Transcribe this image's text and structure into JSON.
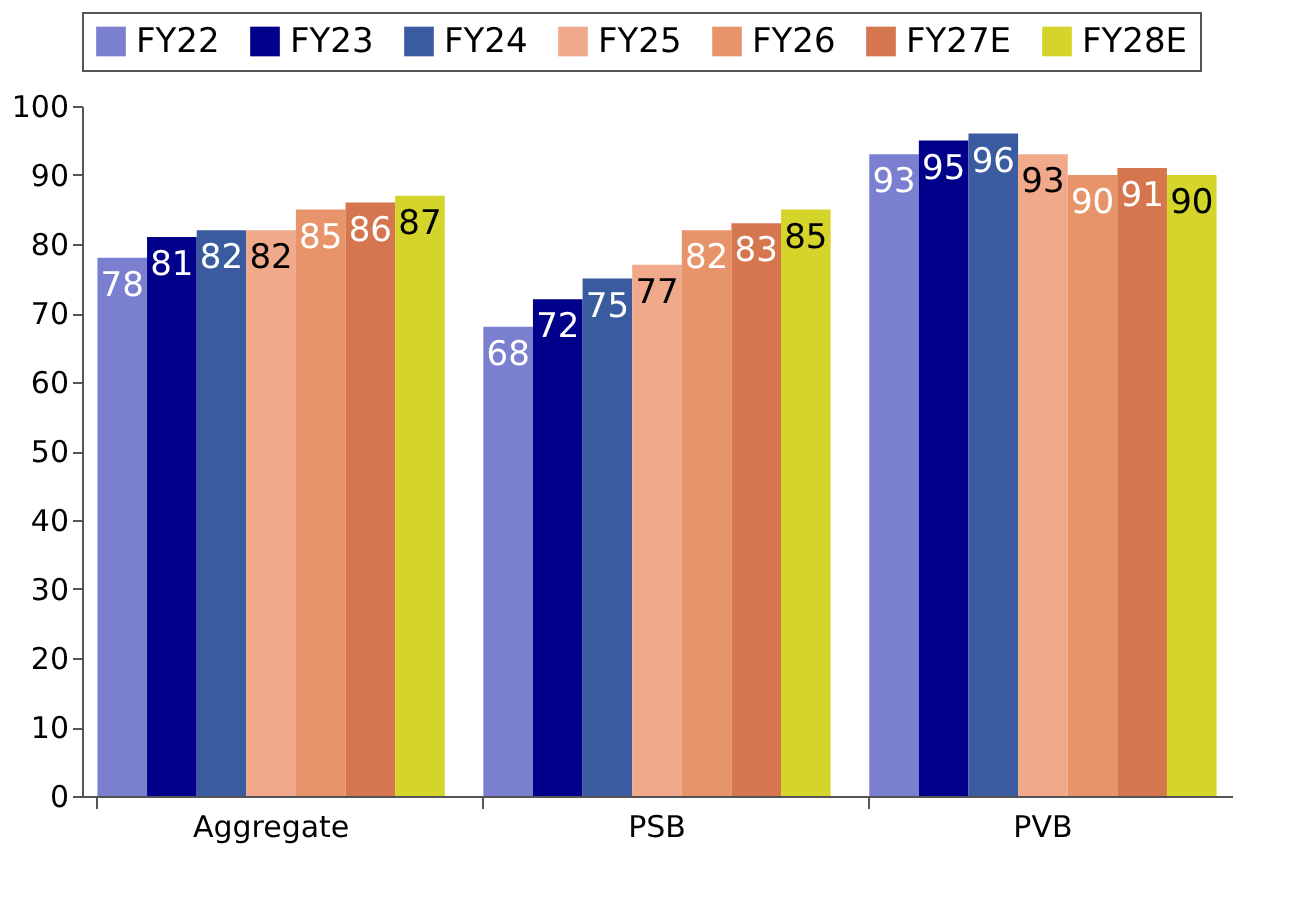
{
  "chart_data": {
    "type": "bar",
    "categories": [
      "Aggregate",
      "PSB",
      "PVB"
    ],
    "series": [
      {
        "name": "FY22",
        "color": "#7b7fd0",
        "values": [
          78,
          68,
          93
        ]
      },
      {
        "name": "FY23",
        "color": "#00008b",
        "values": [
          81,
          72,
          95
        ]
      },
      {
        "name": "FY24",
        "color": "#3a5ba0",
        "values": [
          82,
          75,
          96
        ]
      },
      {
        "name": "FY25",
        "color": "#f0a98a",
        "values": [
          82,
          77,
          93
        ]
      },
      {
        "name": "FY26",
        "color": "#e8946a",
        "values": [
          85,
          82,
          90
        ]
      },
      {
        "name": "FY27E",
        "color": "#d6764f",
        "values": [
          86,
          83,
          91
        ]
      },
      {
        "name": "FY28E",
        "color": "#d4d42a",
        "values": [
          87,
          85,
          90
        ]
      }
    ],
    "ylim": [
      0,
      100
    ],
    "yticks": [
      0,
      10,
      20,
      30,
      40,
      50,
      60,
      70,
      80,
      90,
      100
    ],
    "grid": false,
    "legend": "top",
    "data_labels": true
  }
}
